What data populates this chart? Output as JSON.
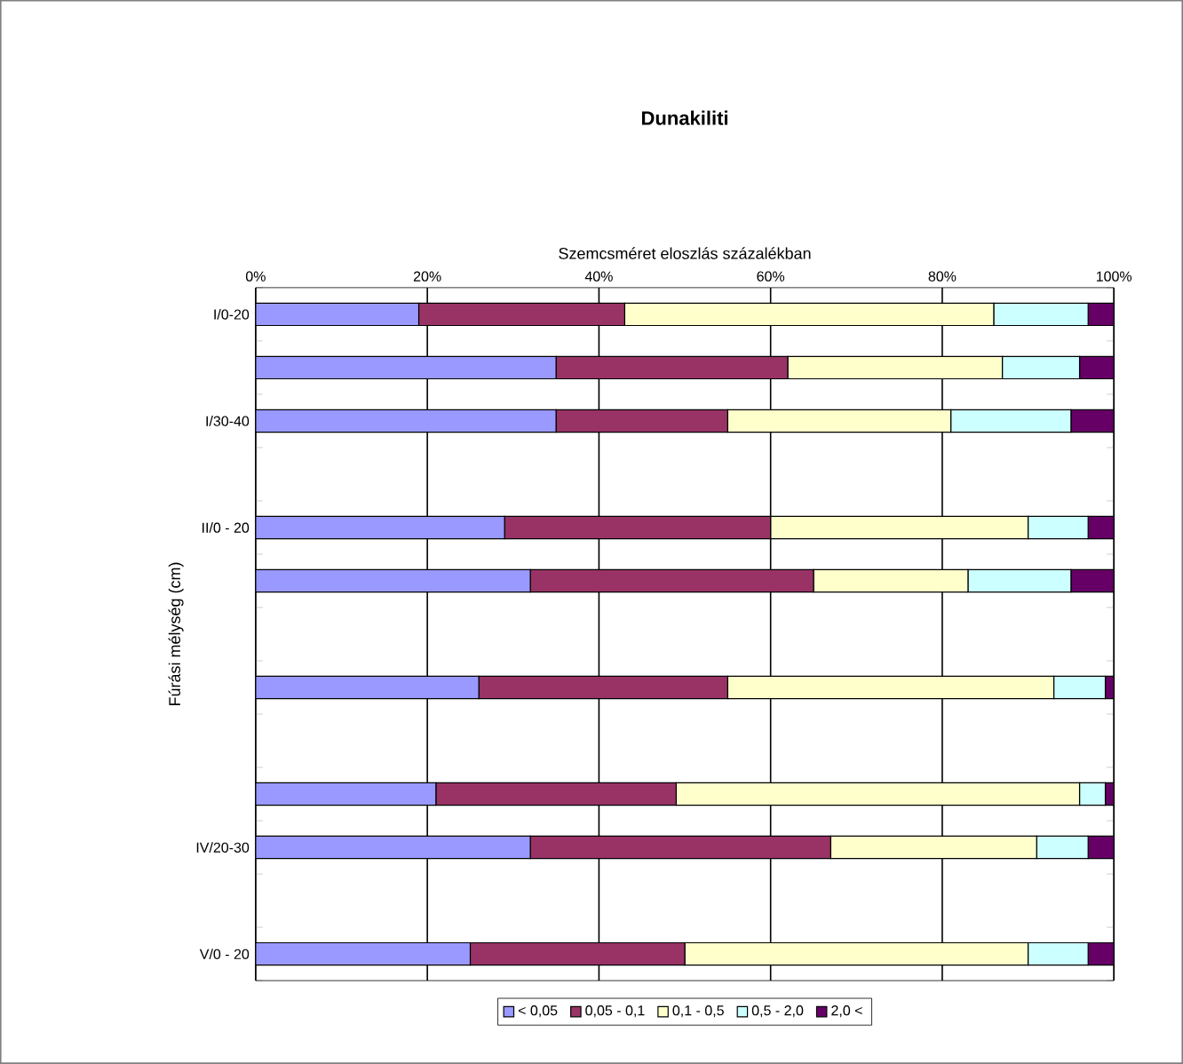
{
  "chart_data": {
    "type": "bar",
    "orientation": "horizontal",
    "stacked": true,
    "title": "Dunakiliti",
    "xlabel": "Szemcsméret eloszlás százalékban",
    "ylabel": "Fúrási mélység (cm)",
    "categories": [
      "I/0-20",
      null,
      "I/30-40",
      null,
      "II/0 - 20",
      null,
      null,
      null,
      null,
      null,
      "IV/20-30",
      null,
      "V/0 - 20"
    ],
    "series": [
      {
        "name": "< 0,05",
        "color": "#9999ff",
        "values": [
          19,
          35,
          35,
          null,
          29,
          32,
          null,
          26,
          null,
          21,
          32,
          null,
          25
        ]
      },
      {
        "name": "0,05 - 0,1",
        "color": "#993366",
        "values": [
          24,
          27,
          20,
          null,
          31,
          33,
          null,
          29,
          null,
          28,
          35,
          null,
          25
        ]
      },
      {
        "name": "0,1 - 0,5",
        "color": "#ffffcc",
        "values": [
          43,
          25,
          26,
          null,
          30,
          18,
          null,
          38,
          null,
          47,
          24,
          null,
          40
        ]
      },
      {
        "name": "0,5 - 2,0",
        "color": "#ccffff",
        "values": [
          11,
          9,
          14,
          null,
          7,
          12,
          null,
          6,
          null,
          3,
          6,
          null,
          7
        ]
      },
      {
        "name": "2,0 <",
        "color": "#660066",
        "values": [
          3,
          4,
          5,
          null,
          3,
          5,
          null,
          1,
          null,
          1,
          3,
          null,
          3
        ]
      }
    ],
    "xlim": [
      0,
      100
    ],
    "xticks": [
      {
        "value": 0,
        "label": "0%"
      },
      {
        "value": 20,
        "label": "20%"
      },
      {
        "value": 40,
        "label": "40%"
      },
      {
        "value": 60,
        "label": "60%"
      },
      {
        "value": 80,
        "label": "80%"
      },
      {
        "value": 100,
        "label": "100%"
      }
    ],
    "grid": "x",
    "legend": "bottom"
  }
}
